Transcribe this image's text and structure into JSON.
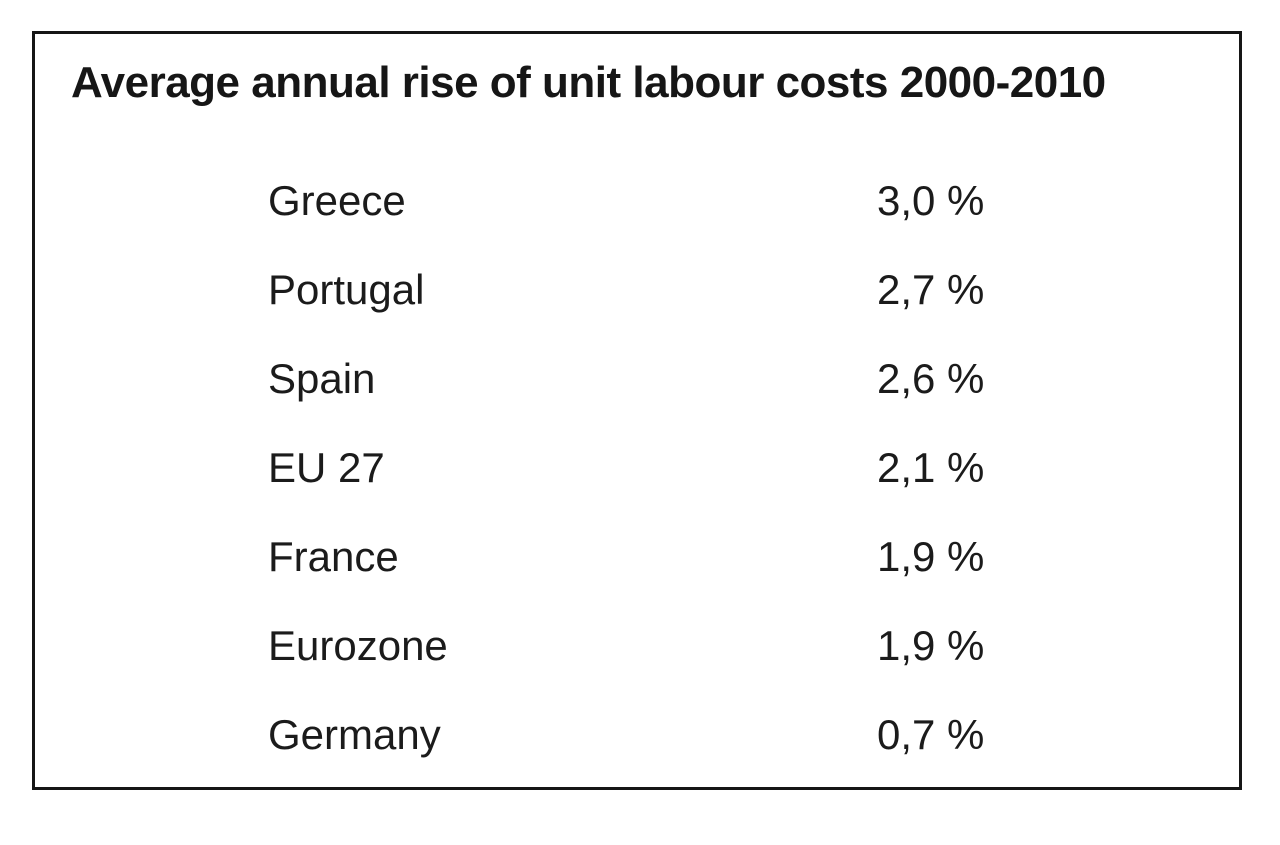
{
  "title": "Average annual rise of unit labour costs 2000-2010",
  "rows": [
    {
      "label": "Greece",
      "value": "3,0 %"
    },
    {
      "label": "Portugal",
      "value": "2,7 %"
    },
    {
      "label": "Spain",
      "value": "2,6 %"
    },
    {
      "label": "EU 27",
      "value": "2,1 %"
    },
    {
      "label": "France",
      "value": "1,9 %"
    },
    {
      "label": "Eurozone",
      "value": "1,9 %"
    },
    {
      "label": "Germany",
      "value": "0,7 %"
    }
  ],
  "chart_data": {
    "type": "table",
    "title": "Average annual rise of unit labour costs 2000-2010",
    "categories": [
      "Greece",
      "Portugal",
      "Spain",
      "EU 27",
      "France",
      "Eurozone",
      "Germany"
    ],
    "values": [
      3.0,
      2.7,
      2.6,
      2.1,
      1.9,
      1.9,
      0.7
    ],
    "value_labels": [
      "3,0 %",
      "2,7 %",
      "2,6 %",
      "2,1 %",
      "1,9 %",
      "1,9 %",
      "0,7 %"
    ],
    "unit": "%",
    "number_format": "comma-decimal",
    "columns": [
      "country",
      "average_annual_rise_percent"
    ],
    "legend_position": "none",
    "grid": false
  },
  "colors": {
    "background": "#ffffff",
    "border": "#161616",
    "text": "#1b1b1b"
  }
}
